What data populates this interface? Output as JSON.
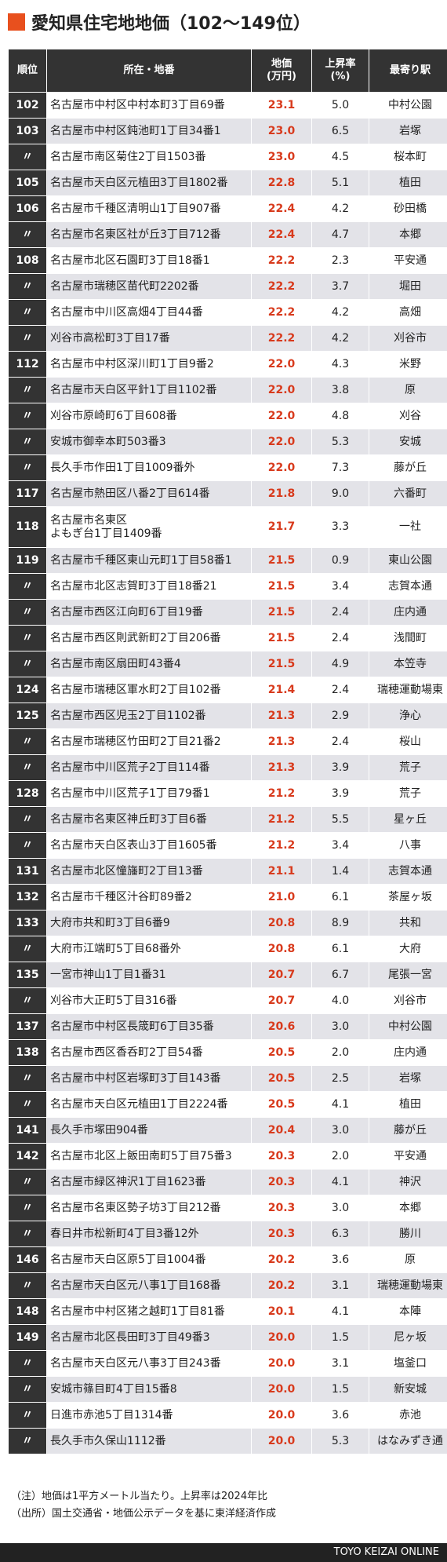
{
  "header": {
    "title": "愛知県住宅地地価（102～149位）"
  },
  "table": {
    "columns": [
      "順位",
      "所在・地番",
      "地価\n(万円)",
      "上昇率\n(%)",
      "最寄り駅"
    ],
    "rows": [
      [
        "102",
        "名古屋市中村区中村本町3丁目69番",
        "23.1",
        "5.0",
        "中村公園"
      ],
      [
        "103",
        "名古屋市中村区鈍池町1丁目34番1",
        "23.0",
        "6.5",
        "岩塚"
      ],
      [
        "〃",
        "名古屋市南区菊住2丁目1503番",
        "23.0",
        "4.5",
        "桜本町"
      ],
      [
        "105",
        "名古屋市天白区元植田3丁目1802番",
        "22.8",
        "5.1",
        "植田"
      ],
      [
        "106",
        "名古屋市千種区清明山1丁目907番",
        "22.4",
        "4.2",
        "砂田橋"
      ],
      [
        "〃",
        "名古屋市名東区社が丘3丁目712番",
        "22.4",
        "4.7",
        "本郷"
      ],
      [
        "108",
        "名古屋市北区石園町3丁目18番1",
        "22.2",
        "2.3",
        "平安通"
      ],
      [
        "〃",
        "名古屋市瑞穂区苗代町2202番",
        "22.2",
        "3.7",
        "堀田"
      ],
      [
        "〃",
        "名古屋市中川区高畑4丁目44番",
        "22.2",
        "4.2",
        "高畑"
      ],
      [
        "〃",
        "刈谷市高松町3丁目17番",
        "22.2",
        "4.2",
        "刈谷市"
      ],
      [
        "112",
        "名古屋市中村区深川町1丁目9番2",
        "22.0",
        "4.3",
        "米野"
      ],
      [
        "〃",
        "名古屋市天白区平針1丁目1102番",
        "22.0",
        "3.8",
        "原"
      ],
      [
        "〃",
        "刈谷市原崎町6丁目608番",
        "22.0",
        "4.8",
        "刈谷"
      ],
      [
        "〃",
        "安城市御幸本町503番3",
        "22.0",
        "5.3",
        "安城"
      ],
      [
        "〃",
        "長久手市作田1丁目1009番外",
        "22.0",
        "7.3",
        "藤が丘"
      ],
      [
        "117",
        "名古屋市熱田区八番2丁目614番",
        "21.8",
        "9.0",
        "六番町"
      ],
      [
        "118",
        "名古屋市名東区\nよもぎ台1丁目1409番",
        "21.7",
        "3.3",
        "一社"
      ],
      [
        "119",
        "名古屋市千種区東山元町1丁目58番1",
        "21.5",
        "0.9",
        "東山公園"
      ],
      [
        "〃",
        "名古屋市北区志賀町3丁目18番21",
        "21.5",
        "3.4",
        "志賀本通"
      ],
      [
        "〃",
        "名古屋市西区江向町6丁目19番",
        "21.5",
        "2.4",
        "庄内通"
      ],
      [
        "〃",
        "名古屋市西区則武新町2丁目206番",
        "21.5",
        "2.4",
        "浅間町"
      ],
      [
        "〃",
        "名古屋市南区扇田町43番4",
        "21.5",
        "4.9",
        "本笠寺"
      ],
      [
        "124",
        "名古屋市瑞穂区軍水町2丁目102番",
        "21.4",
        "2.4",
        "瑞穂運動場東"
      ],
      [
        "125",
        "名古屋市西区児玉2丁目1102番",
        "21.3",
        "2.9",
        "浄心"
      ],
      [
        "〃",
        "名古屋市瑞穂区竹田町2丁目21番2",
        "21.3",
        "2.4",
        "桜山"
      ],
      [
        "〃",
        "名古屋市中川区荒子2丁目114番",
        "21.3",
        "3.9",
        "荒子"
      ],
      [
        "128",
        "名古屋市中川区荒子1丁目79番1",
        "21.2",
        "3.9",
        "荒子"
      ],
      [
        "〃",
        "名古屋市名東区神丘町3丁目6番",
        "21.2",
        "5.5",
        "星ヶ丘"
      ],
      [
        "〃",
        "名古屋市天白区表山3丁目1605番",
        "21.2",
        "3.4",
        "八事"
      ],
      [
        "131",
        "名古屋市北区憧旛町2丁目13番",
        "21.1",
        "1.4",
        "志賀本通"
      ],
      [
        "132",
        "名古屋市千種区汁谷町89番2",
        "21.0",
        "6.1",
        "茶屋ヶ坂"
      ],
      [
        "133",
        "大府市共和町3丁目6番9",
        "20.8",
        "8.9",
        "共和"
      ],
      [
        "〃",
        "大府市江端町5丁目68番外",
        "20.8",
        "6.1",
        "大府"
      ],
      [
        "135",
        "一宮市神山1丁目1番31",
        "20.7",
        "6.7",
        "尾張一宮"
      ],
      [
        "〃",
        "刈谷市大正町5丁目316番",
        "20.7",
        "4.0",
        "刈谷市"
      ],
      [
        "137",
        "名古屋市中村区長筬町6丁目35番",
        "20.6",
        "3.0",
        "中村公園"
      ],
      [
        "138",
        "名古屋市西区香呑町2丁目54番",
        "20.5",
        "2.0",
        "庄内通"
      ],
      [
        "〃",
        "名古屋市中村区岩塚町3丁目143番",
        "20.5",
        "2.5",
        "岩塚"
      ],
      [
        "〃",
        "名古屋市天白区元植田1丁目2224番",
        "20.5",
        "4.1",
        "植田"
      ],
      [
        "141",
        "長久手市塚田904番",
        "20.4",
        "3.0",
        "藤が丘"
      ],
      [
        "142",
        "名古屋市北区上飯田南町5丁目75番3",
        "20.3",
        "2.0",
        "平安通"
      ],
      [
        "〃",
        "名古屋市緑区神沢1丁目1623番",
        "20.3",
        "4.1",
        "神沢"
      ],
      [
        "〃",
        "名古屋市名東区勢子坊3丁目212番",
        "20.3",
        "3.0",
        "本郷"
      ],
      [
        "〃",
        "春日井市松新町4丁目3番12外",
        "20.3",
        "6.3",
        "勝川"
      ],
      [
        "146",
        "名古屋市天白区原5丁目1004番",
        "20.2",
        "3.6",
        "原"
      ],
      [
        "〃",
        "名古屋市天白区元八事1丁目168番",
        "20.2",
        "3.1",
        "瑞穂運動場東"
      ],
      [
        "148",
        "名古屋市中村区猪之越町1丁目81番",
        "20.1",
        "4.1",
        "本陣"
      ],
      [
        "149",
        "名古屋市北区長田町3丁目49番3",
        "20.0",
        "1.5",
        "尼ヶ坂"
      ],
      [
        "〃",
        "名古屋市天白区元八事3丁目243番",
        "20.0",
        "3.1",
        "塩釜口"
      ],
      [
        "〃",
        "安城市篠目町4丁目15番8",
        "20.0",
        "1.5",
        "新安城"
      ],
      [
        "〃",
        "日進市赤池5丁目1314番",
        "20.0",
        "3.6",
        "赤池"
      ],
      [
        "〃",
        "長久手市久保山1112番",
        "20.0",
        "5.3",
        "はなみずき通"
      ]
    ]
  },
  "notes": [
    "（注）地価は1平方メートル当たり。上昇率は2024年比",
    "（出所）国土交通省・地価公示データを基に東洋経済作成"
  ],
  "footer": "TOYO KEIZAI ONLINE"
}
